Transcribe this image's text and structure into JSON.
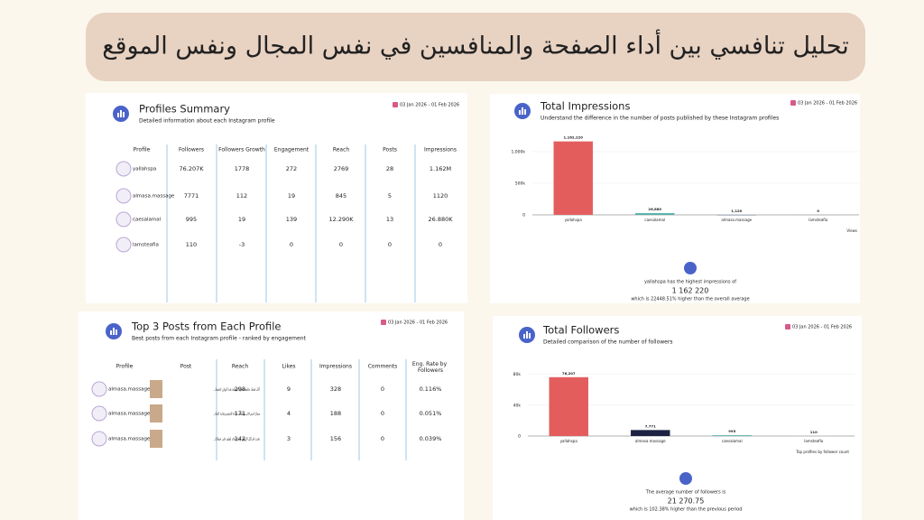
{
  "title": "تحليل تنافسي بين أداء الصفحة والمنافسين في نفس المجال ونفس الموقع",
  "profiles_summary": {
    "title": "Profiles Summary",
    "subtitle": "Detailed information about each Instagram profile",
    "date": "03 Jan 2026 - 01 Feb 2026",
    "headers": [
      "Profile",
      "Followers",
      "Followers Growth",
      "Engagement",
      "Reach",
      "Posts",
      "Impressions"
    ],
    "rows": [
      [
        "yallahspa",
        "76.207K",
        1778,
        272,
        2769,
        28,
        "1.162M"
      ],
      [
        "almasa.massage",
        7771,
        112,
        19,
        845,
        5,
        1120
      ],
      [
        "caesalamal",
        995,
        19,
        139,
        "12.290K",
        13,
        "26.880K"
      ],
      [
        "lamsteafia",
        110,
        -3,
        0,
        0,
        0,
        0
      ]
    ]
  },
  "top_posts": {
    "title": "Top 3 Posts from Each Profile",
    "subtitle": "Best posts from each Instagram profile - ranked by engagement",
    "date": "03 Jan 2026 - 01 Feb 2026",
    "headers": [
      "Profile",
      "Post",
      "Reach",
      "Likes",
      "Impressions",
      "Comments",
      "Eng. Rate by Followers"
    ],
    "rows": [
      [
        "almasa.massage",
        "أدلل نفسك بجلسة مساج احترافية بعيد التوازن لجسمك...",
        298,
        9,
        328,
        0,
        "0.116%"
      ],
      [
        "almasa.massage",
        "مساج استرخائي وجلسات راحة للجسم وعناية كاملة...",
        171,
        4,
        188,
        0,
        "0.051%"
      ],
      [
        "almasa.massage",
        "تجديد تام لكل الإرهاق مساج واحد لطيف على عضلاتك...",
        142,
        3,
        156,
        0,
        "0.039%"
      ]
    ]
  },
  "chart_data": [
    {
      "type": "bar",
      "title": "Total Impressions",
      "subtitle": "Understand the difference in the number of posts published by these Instagram profiles",
      "date": "03 Jan 2026 - 01 Feb 2026",
      "categories": [
        "yallahspa",
        "caesalamal",
        "almasa.massage",
        "lamsteafia"
      ],
      "values": [
        1162220,
        26880,
        1120,
        0
      ],
      "value_labels": [
        "1,162,220",
        "26,880",
        "1,120",
        "0"
      ],
      "colors": [
        "#e35d5d",
        "#4fb0a8",
        "#9aa3b5",
        "#c9c9c9"
      ],
      "ylim": [
        0,
        1300000
      ],
      "yticks": [
        0,
        {
          "value": 500000,
          "label": "500k"
        },
        {
          "value": 1000000,
          "label": "1,000k"
        }
      ],
      "xlabel": "Views",
      "grid": true,
      "summary": [
        "yallahspa has the highest impressions of",
        "1 162 220",
        "which is 22448.51% higher than the overall average"
      ]
    },
    {
      "type": "bar",
      "title": "Total Followers",
      "subtitle": "Detailed comparison of the number of followers",
      "date": "03 Jan 2026 - 01 Feb 2026",
      "categories": [
        "yallahspa",
        "almasa.massage",
        "caesalamal",
        "lamsteafia"
      ],
      "values": [
        76207,
        7771,
        995,
        110
      ],
      "value_labels": [
        "76,207",
        "7,771",
        "995",
        "110"
      ],
      "colors": [
        "#e35d5d",
        "#1d2244",
        "#4fb0a8",
        "#c9c9c9"
      ],
      "ylim": [
        0,
        90000
      ],
      "yticks": [
        0,
        {
          "value": 40000,
          "label": "40k"
        },
        {
          "value": 80000,
          "label": "80k"
        }
      ],
      "annotation": "Top profiles by follower count",
      "grid": true,
      "summary": [
        "The average number of followers is",
        "21 270.75",
        "which is 102.38% higher than the previous period"
      ]
    }
  ]
}
